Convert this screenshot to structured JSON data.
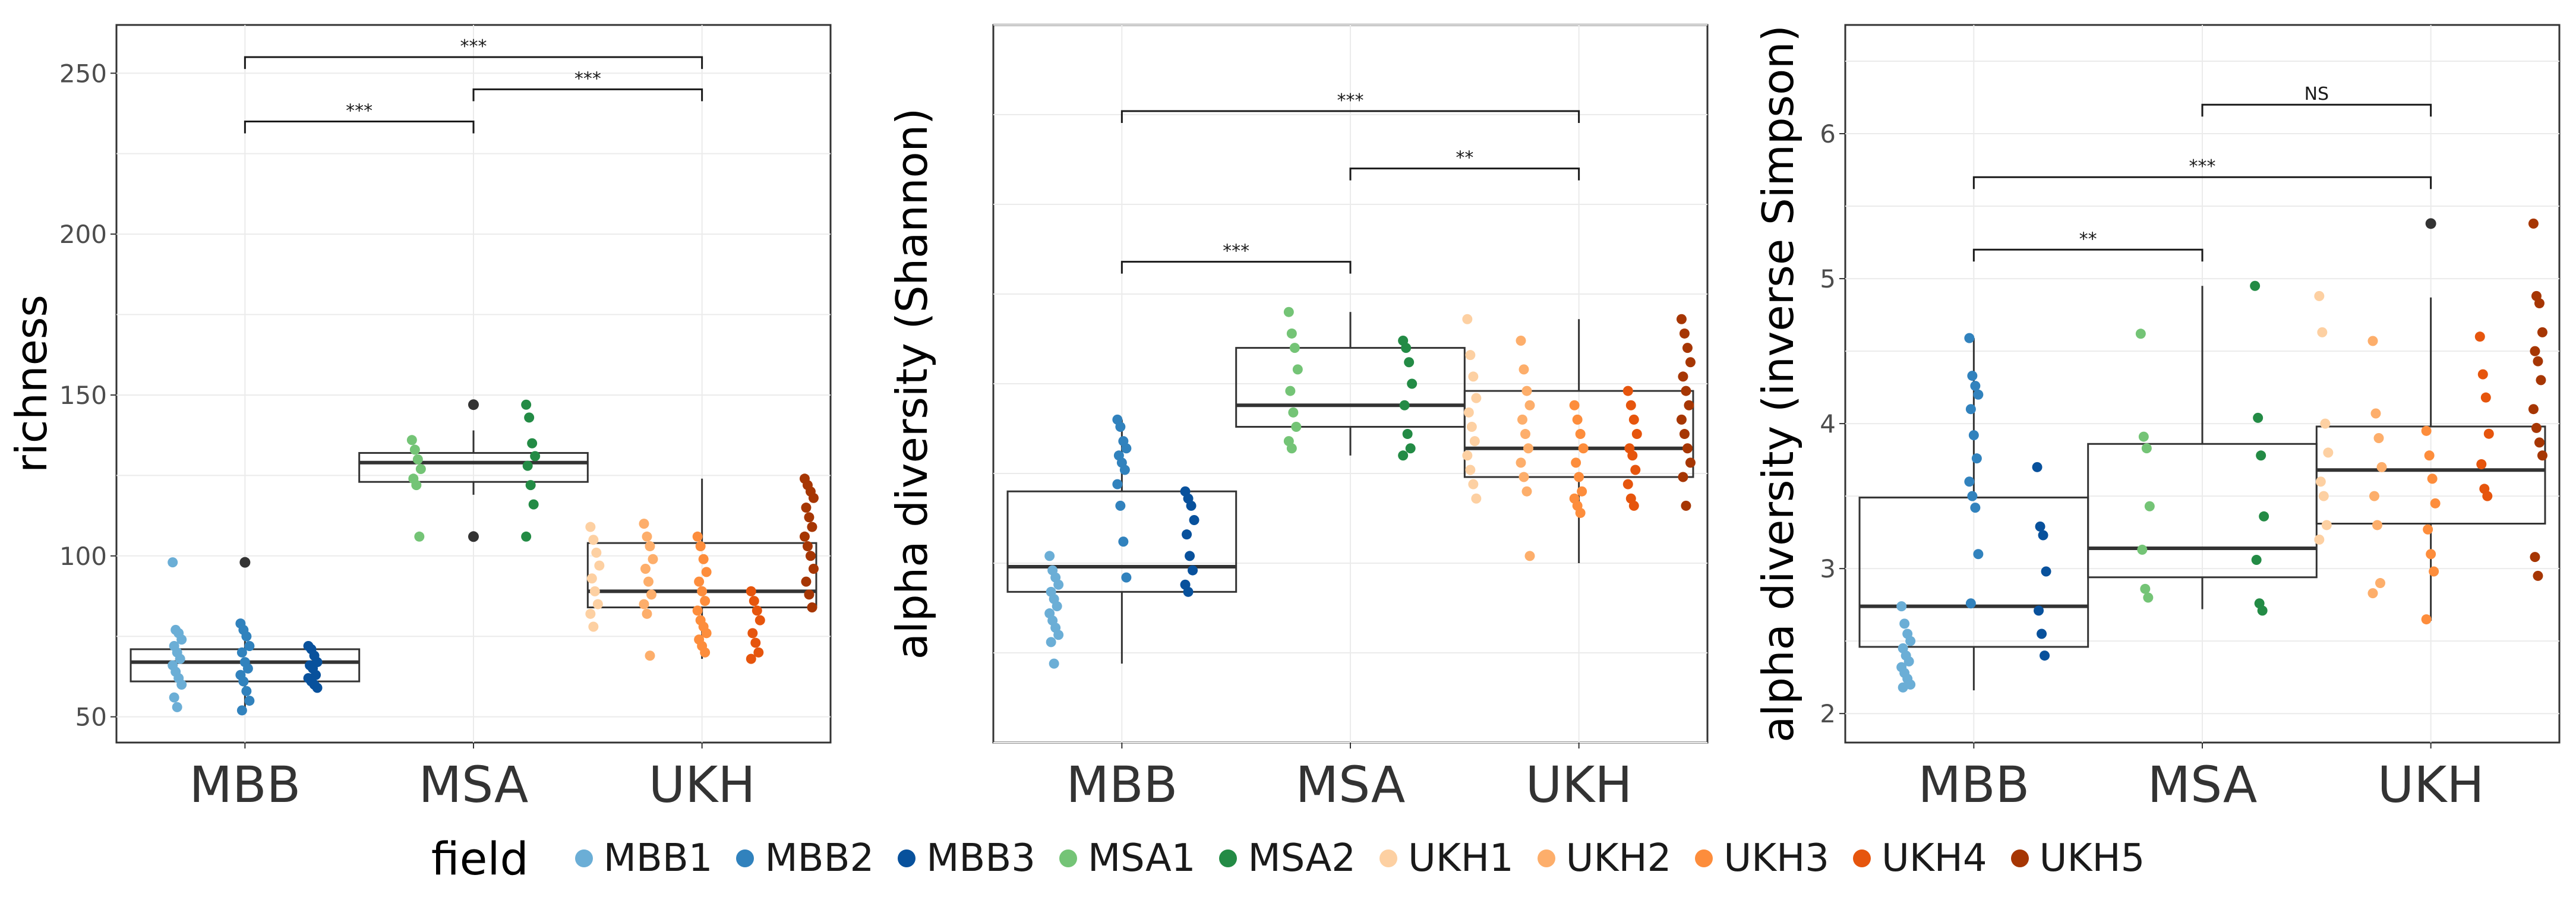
{
  "chart_data": [
    {
      "type": "box",
      "title": "",
      "xlabel": "",
      "ylabel": "richness",
      "categories": [
        "MBB",
        "MSA",
        "UKH"
      ],
      "ylim": [
        42,
        265
      ],
      "yticks": [
        50,
        100,
        150,
        200,
        250
      ],
      "boxes": [
        {
          "category": "MBB",
          "q1": 61,
          "median": 67,
          "q3": 71,
          "whisker_low": 52,
          "whisker_high": 78,
          "outliers": [
            98
          ]
        },
        {
          "category": "MSA",
          "q1": 123,
          "median": 129,
          "q3": 132,
          "whisker_low": 119,
          "whisker_high": 139,
          "outliers": [
            106,
            147
          ]
        },
        {
          "category": "UKH",
          "q1": 84,
          "median": 89,
          "q3": 104,
          "whisker_low": 68,
          "whisker_high": 124,
          "outliers": []
        }
      ],
      "points": [
        {
          "category": "MBB",
          "field": "MBB1",
          "values": [
            98,
            77,
            76,
            74,
            72,
            70,
            68,
            66,
            64,
            62,
            60,
            56,
            53
          ]
        },
        {
          "category": "MBB",
          "field": "MBB2",
          "values": [
            79,
            77,
            75,
            72,
            70,
            67,
            65,
            63,
            61,
            58,
            55,
            52
          ]
        },
        {
          "category": "MBB",
          "field": "MBB3",
          "values": [
            72,
            71,
            69,
            67,
            66,
            65,
            63,
            62,
            61,
            60,
            59
          ]
        },
        {
          "category": "MSA",
          "field": "MSA1",
          "values": [
            136,
            133,
            130,
            127,
            124,
            122,
            106
          ]
        },
        {
          "category": "MSA",
          "field": "MSA2",
          "values": [
            147,
            143,
            135,
            131,
            128,
            122,
            116,
            106
          ]
        },
        {
          "category": "UKH",
          "field": "UKH1",
          "values": [
            109,
            105,
            101,
            97,
            93,
            89,
            85,
            82,
            78
          ]
        },
        {
          "category": "UKH",
          "field": "UKH2",
          "values": [
            110,
            106,
            103,
            99,
            96,
            92,
            88,
            85,
            82,
            69
          ]
        },
        {
          "category": "UKH",
          "field": "UKH3",
          "values": [
            106,
            103,
            99,
            95,
            92,
            89,
            86,
            83,
            80,
            78,
            76,
            74,
            72,
            70
          ]
        },
        {
          "category": "UKH",
          "field": "UKH4",
          "values": [
            89,
            86,
            83,
            80,
            76,
            73,
            70,
            68
          ]
        },
        {
          "category": "UKH",
          "field": "UKH5",
          "values": [
            124,
            122,
            120,
            118,
            115,
            112,
            109,
            106,
            103,
            100,
            96,
            92,
            88,
            84
          ]
        }
      ],
      "outlier_points": [
        {
          "category": "MBB",
          "value": 98
        },
        {
          "category": "MSA",
          "value": 147
        },
        {
          "category": "MSA",
          "value": 106
        }
      ],
      "brackets": [
        {
          "from": "MBB",
          "to": "UKH",
          "y": 255,
          "label": "***"
        },
        {
          "from": "MSA",
          "to": "UKH",
          "y": 245,
          "label": "***"
        },
        {
          "from": "MBB",
          "to": "MSA",
          "y": 235,
          "label": "***"
        }
      ]
    },
    {
      "type": "box",
      "title": "",
      "xlabel": "",
      "ylabel": "alpha diversity (Shannon)",
      "categories": [
        "MBB",
        "MSA",
        "UKH"
      ],
      "ylim": [
        0,
        100
      ],
      "yticks": [],
      "boxes": [
        {
          "category": "MBB",
          "q1": 21,
          "median": 24.5,
          "q3": 35,
          "whisker_low": 11,
          "whisker_high": 45,
          "outliers": []
        },
        {
          "category": "MSA",
          "q1": 44,
          "median": 47,
          "q3": 55,
          "whisker_low": 40,
          "whisker_high": 60,
          "outliers": []
        },
        {
          "category": "UKH",
          "q1": 37,
          "median": 41,
          "q3": 49,
          "whisker_low": 25,
          "whisker_high": 59,
          "outliers": []
        }
      ],
      "points": [
        {
          "category": "MBB",
          "field": "MBB1",
          "values": [
            26,
            24,
            23,
            22,
            21,
            20,
            19,
            18,
            17,
            16,
            15,
            14,
            11
          ]
        },
        {
          "category": "MBB",
          "field": "MBB2",
          "values": [
            45,
            44,
            42,
            41,
            40,
            39,
            38,
            36,
            33,
            28,
            23
          ]
        },
        {
          "category": "MBB",
          "field": "MBB3",
          "values": [
            35,
            34,
            33,
            31,
            29,
            26,
            24,
            22,
            21
          ]
        },
        {
          "category": "MSA",
          "field": "MSA1",
          "values": [
            60,
            57,
            55,
            52,
            49,
            46,
            44,
            42,
            41
          ]
        },
        {
          "category": "MSA",
          "field": "MSA2",
          "values": [
            56,
            55,
            53,
            50,
            47,
            43,
            41,
            40
          ]
        },
        {
          "category": "UKH",
          "field": "UKH1",
          "values": [
            59,
            54,
            51,
            48,
            46,
            44,
            42,
            40,
            38,
            36,
            34
          ]
        },
        {
          "category": "UKH",
          "field": "UKH2",
          "values": [
            56,
            52,
            49,
            47,
            45,
            43,
            41,
            39,
            37,
            35,
            26
          ]
        },
        {
          "category": "UKH",
          "field": "UKH3",
          "values": [
            47,
            45,
            43,
            41,
            39,
            37,
            35,
            34,
            33,
            32
          ]
        },
        {
          "category": "UKH",
          "field": "UKH4",
          "values": [
            49,
            47,
            45,
            43,
            41,
            40,
            38,
            36,
            34,
            33
          ]
        },
        {
          "category": "UKH",
          "field": "UKH5",
          "values": [
            59,
            57,
            55,
            53,
            51,
            49,
            47,
            45,
            43,
            41,
            39,
            37,
            33
          ]
        }
      ],
      "outlier_points": [],
      "brackets": [
        {
          "from": "MBB",
          "to": "UKH",
          "y": 88,
          "label": "***"
        },
        {
          "from": "MSA",
          "to": "UKH",
          "y": 80,
          "label": "**"
        },
        {
          "from": "MBB",
          "to": "MSA",
          "y": 67,
          "label": "***"
        }
      ]
    },
    {
      "type": "box",
      "title": "",
      "xlabel": "",
      "ylabel": "alpha diversity (inverse Simpson)",
      "categories": [
        "MBB",
        "MSA",
        "UKH"
      ],
      "ylim": [
        1.8,
        6.75
      ],
      "yticks": [
        2,
        3,
        4,
        5,
        6
      ],
      "boxes": [
        {
          "category": "MBB",
          "q1": 2.46,
          "median": 2.74,
          "q3": 3.49,
          "whisker_low": 2.16,
          "whisker_high": 4.59,
          "outliers": []
        },
        {
          "category": "MSA",
          "q1": 2.94,
          "median": 3.14,
          "q3": 3.86,
          "whisker_low": 2.72,
          "whisker_high": 4.95,
          "outliers": []
        },
        {
          "category": "UKH",
          "q1": 3.31,
          "median": 3.68,
          "q3": 3.98,
          "whisker_low": 2.64,
          "whisker_high": 4.87,
          "outliers": [
            5.38
          ]
        }
      ],
      "points": [
        {
          "category": "MBB",
          "field": "MBB1",
          "values": [
            2.74,
            2.62,
            2.55,
            2.5,
            2.45,
            2.4,
            2.36,
            2.32,
            2.28,
            2.24,
            2.2,
            2.18
          ]
        },
        {
          "category": "MBB",
          "field": "MBB2",
          "values": [
            4.59,
            4.33,
            4.26,
            4.2,
            4.1,
            3.92,
            3.76,
            3.6,
            3.5,
            3.42,
            3.1,
            2.76
          ]
        },
        {
          "category": "MBB",
          "field": "MBB3",
          "values": [
            3.7,
            3.29,
            3.23,
            2.98,
            2.71,
            2.55,
            2.4
          ]
        },
        {
          "category": "MSA",
          "field": "MSA1",
          "values": [
            4.62,
            3.91,
            3.83,
            3.43,
            3.13,
            2.86,
            2.8
          ]
        },
        {
          "category": "MSA",
          "field": "MSA2",
          "values": [
            4.95,
            4.04,
            3.78,
            3.36,
            3.06,
            2.76,
            2.71
          ]
        },
        {
          "category": "UKH",
          "field": "UKH1",
          "values": [
            4.88,
            4.63,
            4.0,
            3.8,
            3.6,
            3.5,
            3.3,
            3.2
          ]
        },
        {
          "category": "UKH",
          "field": "UKH2",
          "values": [
            4.57,
            4.07,
            3.9,
            3.7,
            3.5,
            3.3,
            2.9,
            2.83
          ]
        },
        {
          "category": "UKH",
          "field": "UKH3",
          "values": [
            3.95,
            3.78,
            3.62,
            3.45,
            3.27,
            3.1,
            2.98,
            2.65
          ]
        },
        {
          "category": "UKH",
          "field": "UKH4",
          "values": [
            4.6,
            4.34,
            4.18,
            3.93,
            3.72,
            3.55,
            3.5
          ]
        },
        {
          "category": "UKH",
          "field": "UKH5",
          "values": [
            5.38,
            4.88,
            4.83,
            4.63,
            4.5,
            4.43,
            4.3,
            4.1,
            3.97,
            3.87,
            3.78,
            3.08,
            2.95
          ]
        }
      ],
      "outlier_points": [
        {
          "category": "UKH",
          "value": 5.38
        }
      ],
      "brackets": [
        {
          "from": "MSA",
          "to": "UKH",
          "y": 6.2,
          "label": "NS"
        },
        {
          "from": "MBB",
          "to": "UKH",
          "y": 5.7,
          "label": "***"
        },
        {
          "from": "MBB",
          "to": "MSA",
          "y": 5.2,
          "label": "**"
        }
      ]
    }
  ],
  "legend": {
    "title": "field",
    "items": [
      {
        "name": "MBB1",
        "color": "#6baed6"
      },
      {
        "name": "MBB2",
        "color": "#3182bd"
      },
      {
        "name": "MBB3",
        "color": "#08519c"
      },
      {
        "name": "MSA1",
        "color": "#74c476"
      },
      {
        "name": "MSA2",
        "color": "#238b45"
      },
      {
        "name": "UKH1",
        "color": "#fdd0a2"
      },
      {
        "name": "UKH2",
        "color": "#fdae6b"
      },
      {
        "name": "UKH3",
        "color": "#fd8d3c"
      },
      {
        "name": "UKH4",
        "color": "#e6550d"
      },
      {
        "name": "UKH5",
        "color": "#a63603"
      }
    ]
  },
  "colors": {
    "outlier": "#333333",
    "grid": "#ebebeb",
    "axis_text": "#4d4d4d",
    "category_text": "#333333"
  }
}
